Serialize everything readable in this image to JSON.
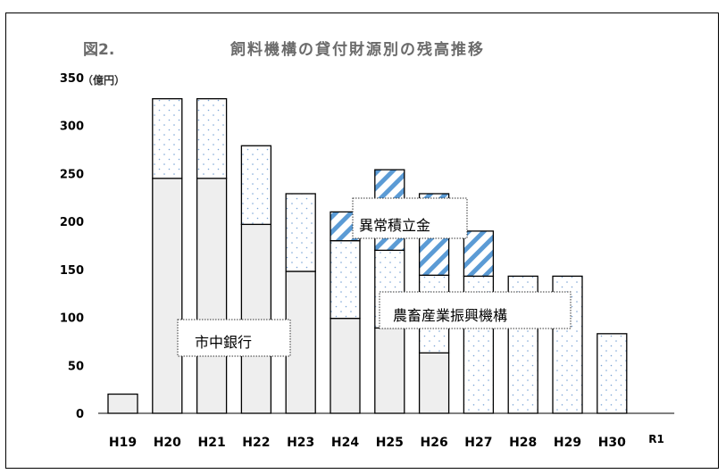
{
  "chart_data": {
    "type": "bar",
    "stacked": true,
    "title_prefix": "図2.",
    "title": "飼料機構の貸付財源別の残高推移",
    "ylabel": "（億円）",
    "xlabel": "",
    "ylim": [
      0,
      350
    ],
    "yticks": [
      0,
      50,
      100,
      150,
      200,
      250,
      300,
      350
    ],
    "grid": false,
    "categories": [
      "H19",
      "H20",
      "H21",
      "H22",
      "H23",
      "H24",
      "H25",
      "H26",
      "H27",
      "H28",
      "H29",
      "H30",
      "R1"
    ],
    "series": [
      {
        "name": "市中銀行",
        "values": [
          20,
          245,
          245,
          197,
          148,
          99,
          89,
          63,
          0,
          0,
          0,
          0,
          0
        ],
        "fill": "#eeeeee",
        "pattern": "solid"
      },
      {
        "name": "農畜産業振興機構",
        "values": [
          0,
          83,
          83,
          82,
          81,
          81,
          81,
          81,
          143,
          143,
          143,
          83,
          0
        ],
        "fill": "#ffffff",
        "pattern": "dots",
        "pattern_color": "#7aa4d6"
      },
      {
        "name": "異常積立金",
        "values": [
          0,
          0,
          0,
          0,
          0,
          30,
          84,
          85,
          47,
          0,
          0,
          0,
          0
        ],
        "fill": "#ffffff",
        "pattern": "hatch",
        "pattern_color": "#5b9bd5"
      }
    ],
    "annotations": [
      {
        "text": "異常積立金",
        "series": "異常積立金"
      },
      {
        "text": "農畜産業振興機構",
        "series": "農畜産業振興機構"
      },
      {
        "text": "市中銀行",
        "series": "市中銀行"
      }
    ]
  }
}
